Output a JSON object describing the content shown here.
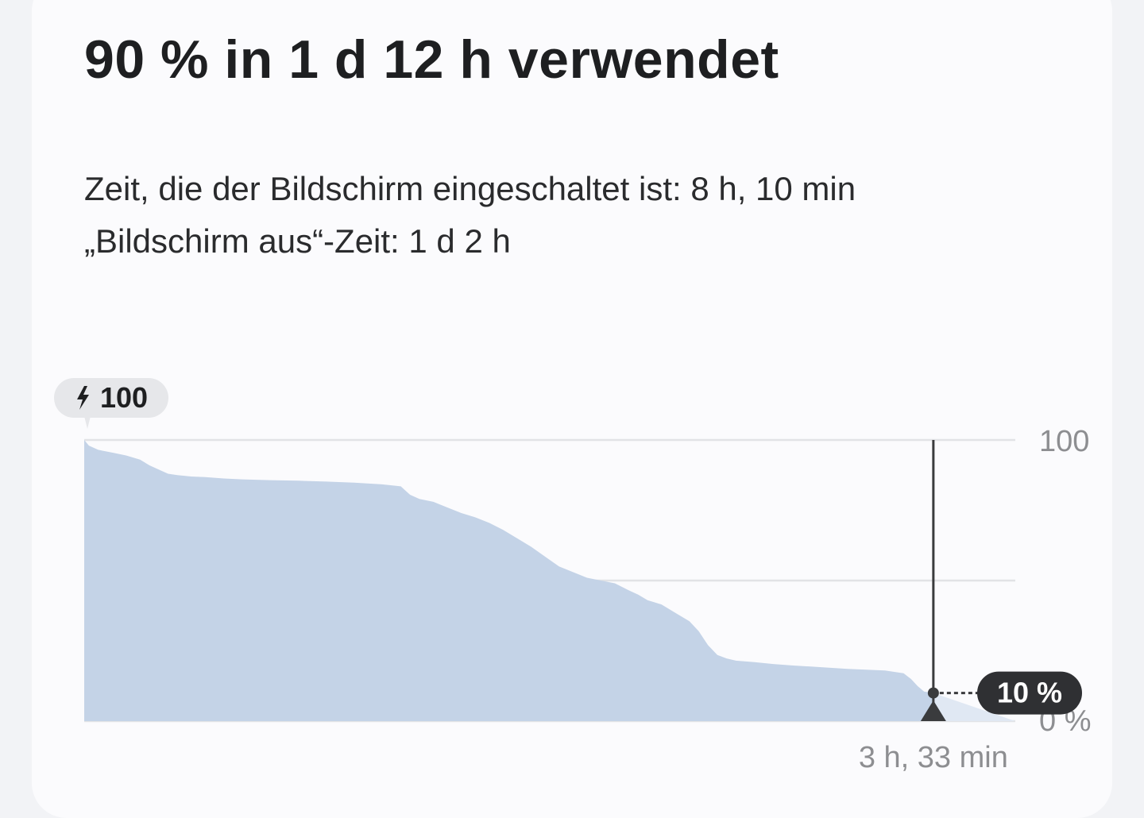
{
  "headline": "90 % in 1 d 12 h verwendet",
  "screen_on_text": "Zeit, die der Bildschirm eingeschaltet ist: 8 h, 10 min",
  "screen_off_text": "„Bildschirm aus“-Zeit: 1 d 2 h",
  "colors": {
    "fill": "#c4d3e7",
    "projection_fill": "#e0e8f3",
    "marker": "#3a3b3d",
    "badge": "#2f3033",
    "start_badge": "#e6e7ea",
    "grid": "#e2e3e6",
    "tick_text": "#8d8e91"
  },
  "chart_data": {
    "type": "area",
    "title": "",
    "ylim": [
      0,
      100
    ],
    "y_tick_labels": [
      "100",
      "0 %"
    ],
    "grid_y": [
      100,
      50,
      0
    ],
    "start_badge": {
      "icon": "bolt-icon",
      "text": "100"
    },
    "current_marker": {
      "label": "10 %",
      "value": 10,
      "time_label": "3 h, 33 min"
    },
    "xlim": [
      0,
      100
    ],
    "series": [
      {
        "values_x": [
          0,
          0.5,
          1.5,
          3,
          4.5,
          6,
          7,
          8,
          9,
          10,
          11.5,
          13,
          15,
          17,
          20,
          23,
          26,
          29,
          32,
          34,
          35,
          36,
          37.5,
          39,
          40.5,
          42,
          43.5,
          45,
          46.5,
          48,
          49.5,
          51,
          52.5,
          54,
          55.5,
          57,
          58.5,
          59.5,
          60.5,
          62,
          63.5,
          65,
          66,
          67,
          68,
          69,
          70,
          72,
          74,
          76,
          78,
          80,
          82,
          84,
          86,
          88,
          88.8,
          89.5,
          90.2,
          91.2
        ],
        "values_y": [
          100,
          98,
          96.5,
          95.5,
          94.5,
          93,
          91,
          89.5,
          88,
          87.5,
          87,
          86.8,
          86.3,
          86,
          85.7,
          85.5,
          85.2,
          84.8,
          84.2,
          83.5,
          80.5,
          79,
          78,
          76,
          74,
          72.5,
          70.5,
          68,
          65,
          62,
          58.5,
          55,
          53,
          51,
          50,
          49,
          46.5,
          45,
          43,
          41.5,
          38.5,
          35.5,
          32,
          27,
          23.5,
          22.3,
          21.5,
          21,
          20.3,
          19.8,
          19.4,
          19,
          18.6,
          18.3,
          18,
          17,
          15,
          12.5,
          10.5,
          10
        ]
      }
    ]
  }
}
